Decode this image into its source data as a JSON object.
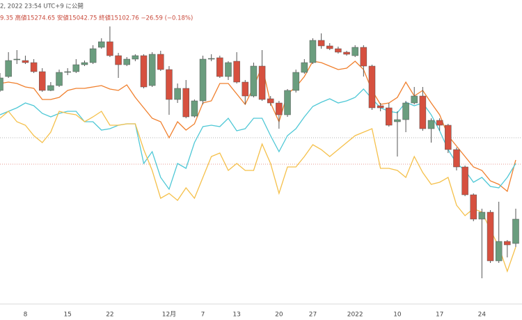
{
  "header": {
    "published": "2, 2022 23:54 UTC+9 に公開",
    "ohlc": "9.35  高値15274.65  安値15042.75  終値15102.76  −26.59 (−0.18%)"
  },
  "chart_data": {
    "type": "candlestick",
    "ylim": [
      0,
      460
    ],
    "up_color": "#6a9d7e",
    "down_color": "#d6503f",
    "categories": [
      null,
      null,
      null,
      "8",
      null,
      null,
      null,
      null,
      "15",
      null,
      null,
      null,
      null,
      "22",
      null,
      null,
      null,
      null,
      null,
      null,
      "12月",
      null,
      null,
      null,
      "7",
      null,
      null,
      null,
      "13",
      null,
      null,
      null,
      null,
      "20",
      null,
      null,
      null,
      "27",
      null,
      null,
      null,
      null,
      "2022",
      null,
      null,
      null,
      null,
      "10",
      null,
      null,
      null,
      null,
      "17",
      null,
      null,
      null,
      null,
      "24",
      null,
      null,
      null,
      null
    ],
    "open": [
      330,
      350,
      374,
      373,
      370,
      357,
      330,
      337,
      356,
      357,
      367,
      370,
      392,
      400,
      380,
      367,
      375,
      380,
      337,
      382,
      360,
      317,
      333,
      293,
      315,
      375,
      377,
      350,
      372,
      342,
      322,
      365,
      318,
      312,
      295,
      330,
      356,
      370,
      402,
      394,
      390,
      385,
      380,
      392,
      365,
      308,
      305,
      285,
      288,
      312,
      322,
      275,
      287,
      280,
      245,
      220,
      180,
      145,
      155,
      85,
      113,
      110
    ],
    "high": [
      355,
      385,
      388,
      380,
      375,
      362,
      342,
      360,
      362,
      375,
      373,
      395,
      405,
      422,
      384,
      378,
      382,
      382,
      385,
      387,
      365,
      340,
      345,
      317,
      380,
      382,
      380,
      372,
      385,
      345,
      370,
      388,
      322,
      315,
      332,
      360,
      375,
      405,
      412,
      398,
      393,
      387,
      395,
      395,
      367,
      312,
      312,
      300,
      315,
      335,
      335,
      290,
      290,
      282,
      248,
      222,
      182,
      160,
      158,
      170,
      115,
      160
    ],
    "low": [
      328,
      348,
      368,
      368,
      355,
      328,
      329,
      335,
      352,
      355,
      365,
      368,
      390,
      378,
      348,
      365,
      372,
      333,
      335,
      358,
      295,
      312,
      290,
      291,
      310,
      372,
      348,
      345,
      340,
      310,
      320,
      315,
      308,
      275,
      292,
      327,
      354,
      368,
      390,
      388,
      383,
      380,
      378,
      350,
      302,
      300,
      278,
      235,
      270,
      310,
      272,
      255,
      272,
      240,
      215,
      178,
      142,
      60,
      82,
      82,
      90,
      105
    ],
    "close": [
      348,
      373,
      375,
      370,
      357,
      330,
      337,
      356,
      357,
      367,
      370,
      390,
      400,
      380,
      367,
      375,
      380,
      335,
      382,
      360,
      317,
      333,
      292,
      315,
      375,
      376,
      350,
      370,
      342,
      322,
      365,
      317,
      312,
      295,
      330,
      356,
      370,
      402,
      394,
      390,
      385,
      382,
      392,
      365,
      305,
      305,
      280,
      288,
      312,
      322,
      275,
      287,
      280,
      245,
      220,
      180,
      145,
      155,
      85,
      113,
      108,
      145
    ],
    "lines": [
      {
        "color": "#f07f2c",
        "values": [
          340,
          342,
          340,
          335,
          333,
          317,
          317,
          320,
          330,
          333,
          333,
          335,
          337,
          332,
          330,
          338,
          320,
          305,
          290,
          285,
          262,
          285,
          273,
          282,
          312,
          315,
          340,
          340,
          325,
          310,
          335,
          365,
          312,
          285,
          325,
          335,
          350,
          372,
          370,
          365,
          360,
          362,
          372,
          360,
          330,
          310,
          312,
          320,
          342,
          322,
          330,
          312,
          295,
          265,
          250,
          235,
          220,
          215,
          200,
          195,
          185,
          230
        ]
      },
      {
        "color": "#4fc8d6",
        "values": [
          295,
          300,
          305,
          312,
          308,
          297,
          292,
          297,
          300,
          300,
          285,
          285,
          273,
          275,
          280,
          282,
          282,
          225,
          242,
          205,
          188,
          225,
          218,
          255,
          278,
          280,
          278,
          290,
          272,
          275,
          290,
          290,
          265,
          242,
          265,
          275,
          292,
          307,
          313,
          318,
          312,
          315,
          320,
          332,
          318,
          305,
          300,
          298,
          313,
          308,
          312,
          295,
          272,
          245,
          225,
          215,
          198,
          205,
          192,
          190,
          205,
          225
        ]
      },
      {
        "color": "#f5c04a",
        "values": [
          290,
          300,
          285,
          280,
          265,
          255,
          270,
          300,
          297,
          295,
          285,
          292,
          300,
          280,
          280,
          282,
          282,
          245,
          215,
          175,
          182,
          172,
          190,
          175,
          205,
          235,
          240,
          215,
          225,
          215,
          215,
          253,
          225,
          182,
          220,
          220,
          235,
          252,
          245,
          235,
          245,
          255,
          265,
          270,
          275,
          218,
          218,
          215,
          205,
          235,
          212,
          195,
          198,
          205,
          165,
          150,
          160,
          155,
          130,
          105,
          70,
          105
        ]
      }
    ]
  }
}
